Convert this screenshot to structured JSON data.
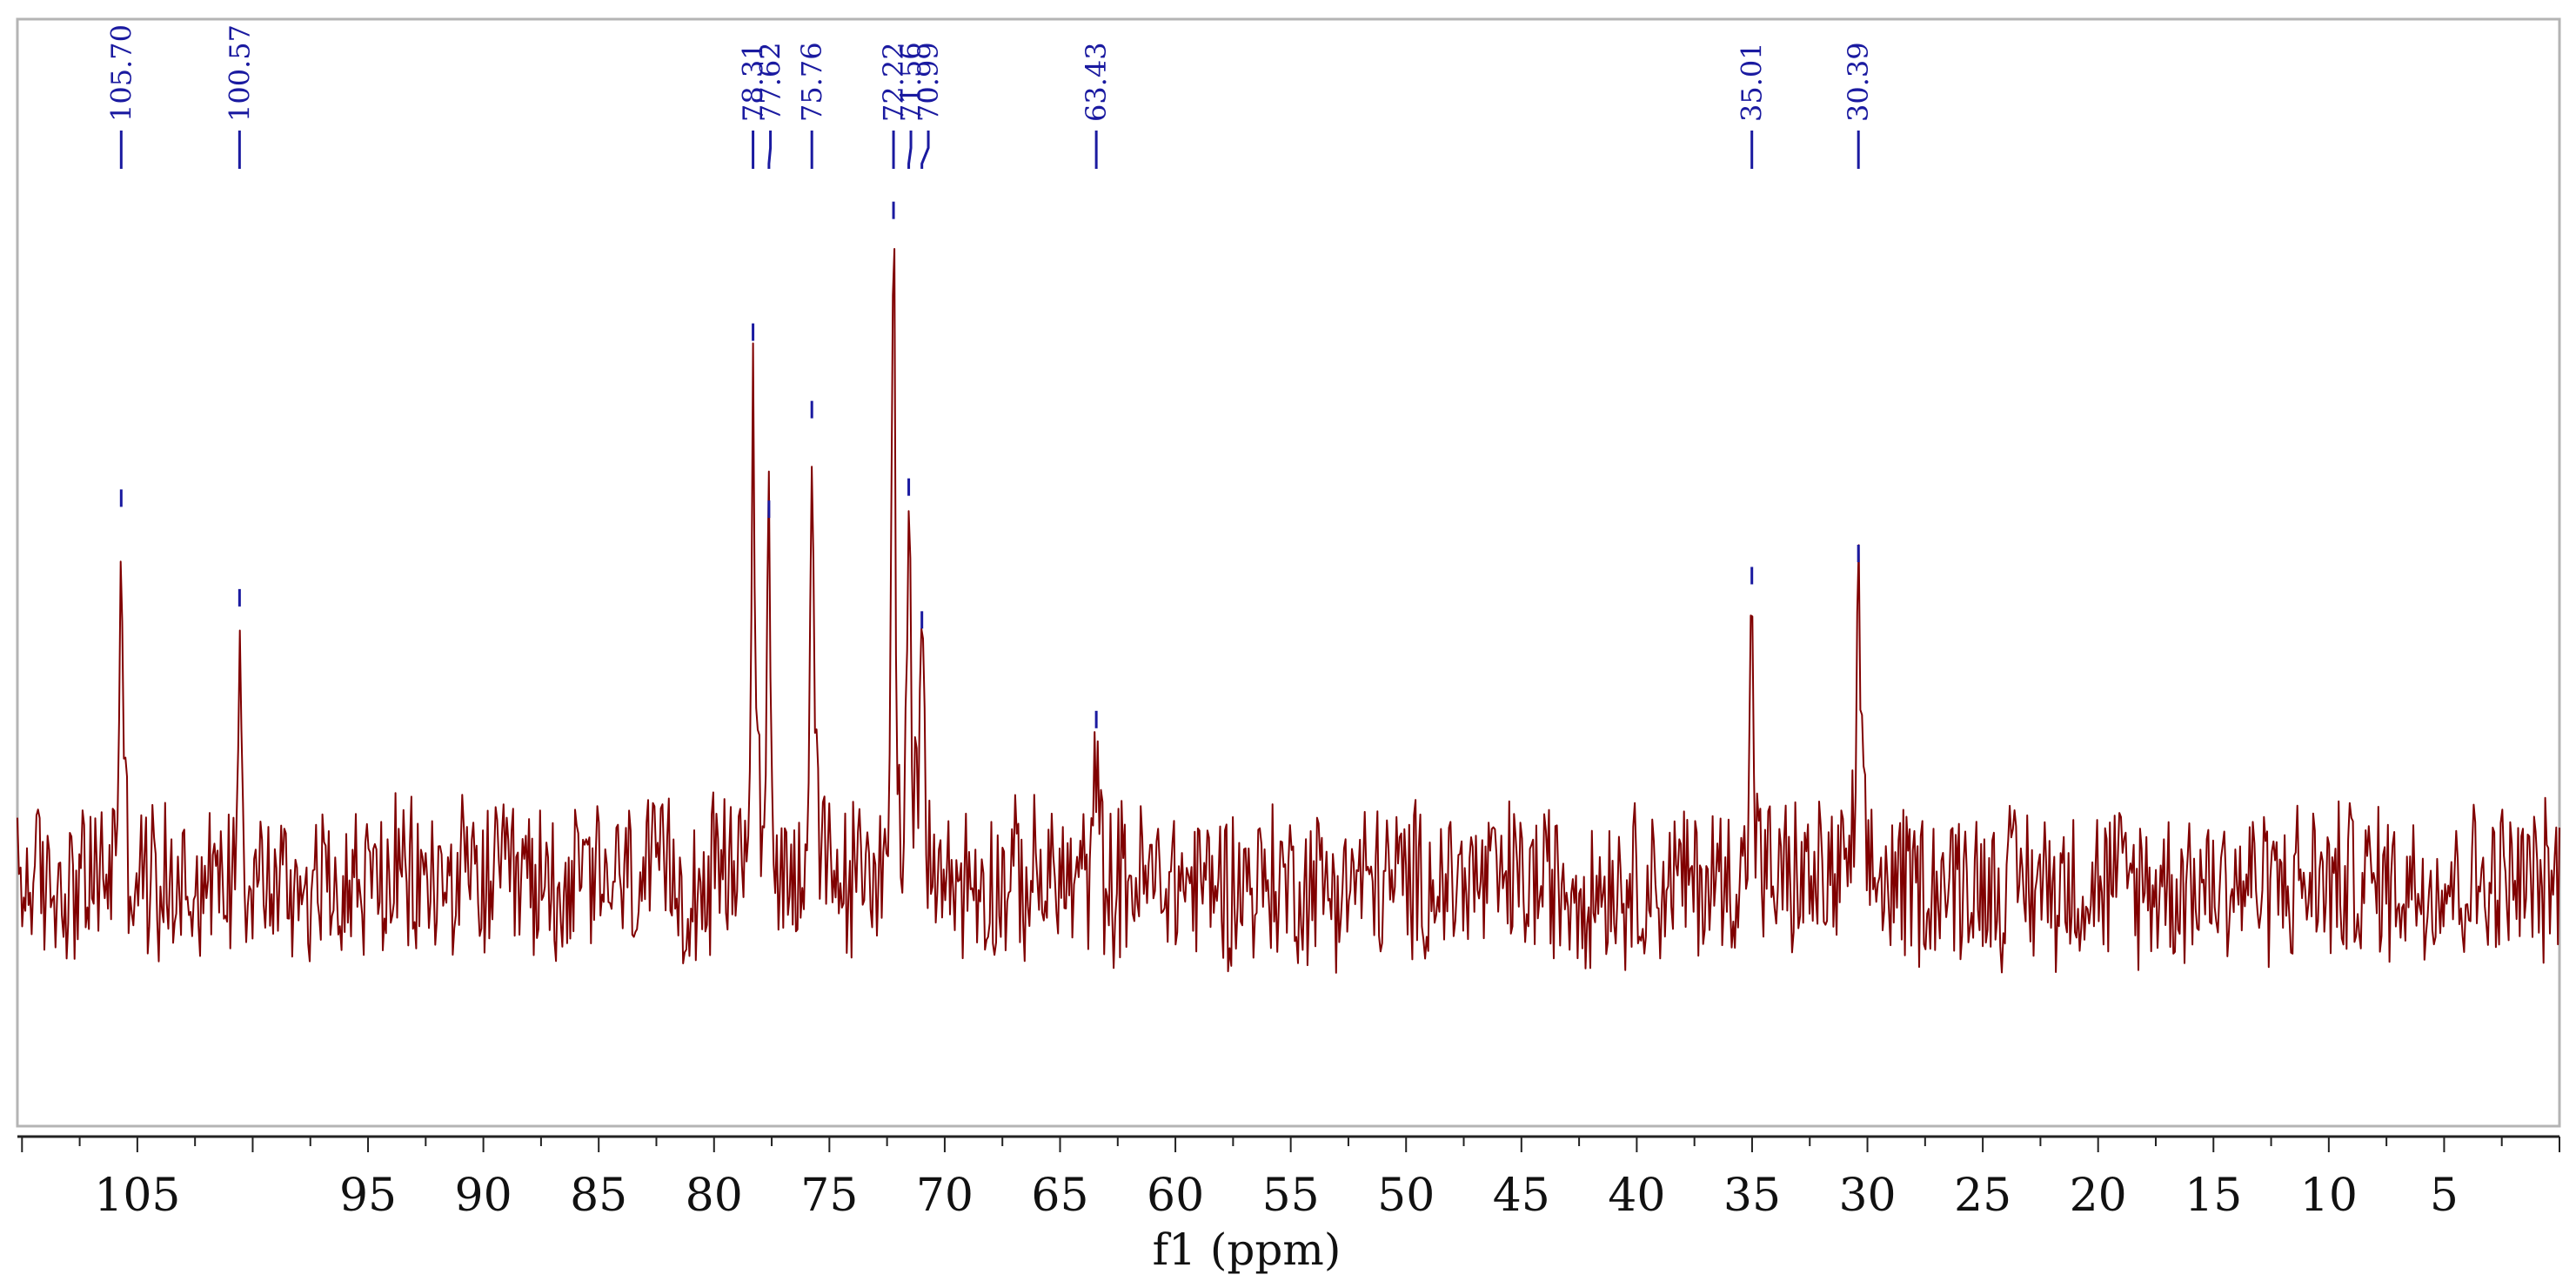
{
  "colors": {
    "spectrum": "#800000",
    "peak_markers": "#1a1aa0",
    "frame": "#b4b4b4",
    "axis": "#222222"
  },
  "chart_data": {
    "type": "line",
    "title": "",
    "xlabel": "f1 (ppm)",
    "ylabel": "",
    "x_reversed": true,
    "xlim": [
      110.2,
      0.0
    ],
    "ylim": [
      0,
      1
    ],
    "grid": false,
    "x_ticks": [
      105,
      95,
      90,
      85,
      80,
      75,
      70,
      65,
      60,
      55,
      50,
      45,
      40,
      35,
      30,
      25,
      20,
      15,
      10,
      5
    ],
    "x_tick_labels": [
      "105",
      "95",
      "90",
      "85",
      "80",
      "75",
      "70",
      "65",
      "60",
      "55",
      "50",
      "45",
      "40",
      "35",
      "30",
      "25",
      "20",
      "15",
      "10",
      "5"
    ],
    "baseline": 0.22,
    "noise_amplitude": 0.085,
    "peaks": [
      {
        "label": "105.70",
        "x": 105.7,
        "y": 0.55
      },
      {
        "label": "100.57",
        "x": 100.57,
        "y": 0.46
      },
      {
        "label": "78.31",
        "x": 78.31,
        "y": 0.7
      },
      {
        "label": "77.62",
        "x": 77.62,
        "y": 0.54
      },
      {
        "label": "75.76",
        "x": 75.76,
        "y": 0.63
      },
      {
        "label": "72.22",
        "x": 72.22,
        "y": 0.81
      },
      {
        "label": "71.56",
        "x": 71.56,
        "y": 0.56
      },
      {
        "label": "70.99",
        "x": 70.99,
        "y": 0.44
      },
      {
        "label": "63.43",
        "x": 63.43,
        "y": 0.35
      },
      {
        "label": "35.01",
        "x": 35.01,
        "y": 0.48
      },
      {
        "label": "30.39",
        "x": 30.39,
        "y": 0.5
      }
    ]
  }
}
